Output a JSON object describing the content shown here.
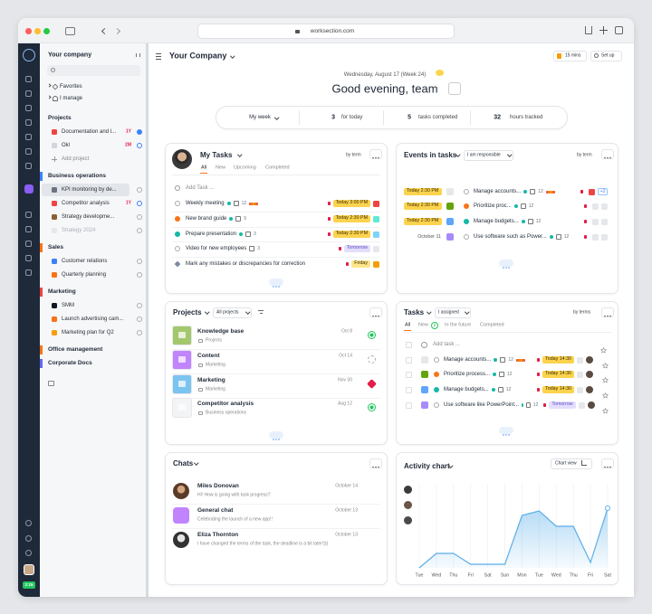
{
  "browser": {
    "url": "worksection.com"
  },
  "rail": {
    "timer": "2:15"
  },
  "sidebar": {
    "title": "Your company",
    "favorites": "Favorites",
    "i_manage": "I manage",
    "add_project": "Add project",
    "sections": [
      {
        "title": "Projects",
        "items": [
          {
            "label": "Documentation and l...",
            "tag": "1Y",
            "icon": "#ef4444"
          },
          {
            "label": "Okl",
            "tag": "2M",
            "icon": "#d1d5db"
          },
          {
            "label": "Add project"
          }
        ]
      },
      {
        "title": "Business operations",
        "accent": "#3b82f6",
        "items": [
          {
            "label": "KPI monitoring by de...",
            "icon": "#6b7280",
            "selected": true
          },
          {
            "label": "Competitor analysis",
            "tag": "1Y",
            "icon": "#ef4444"
          },
          {
            "label": "Strategy developme...",
            "icon": "#8b5e34"
          },
          {
            "label": "Strategy 2024",
            "icon": "#e5e7eb",
            "muted": true
          }
        ]
      },
      {
        "title": "Sales",
        "accent": "#f97316",
        "items": [
          {
            "label": "Customer relations",
            "icon": "#3b82f6"
          },
          {
            "label": "Quarterly planning",
            "icon": "#f97316"
          }
        ]
      },
      {
        "title": "Marketing",
        "accent": "#ef4444",
        "items": [
          {
            "label": "SMM",
            "icon": "#111827"
          },
          {
            "label": "Launch advertising cam...",
            "icon": "#f97316"
          },
          {
            "label": "Marketing plan for Q2",
            "icon": "#f59e0b"
          }
        ]
      },
      {
        "title": "Office management",
        "accent": "#f97316",
        "items": []
      },
      {
        "title": "Corporate Docs",
        "accent": "#6366f1",
        "items": []
      }
    ]
  },
  "header": {
    "workspace": "Your Company",
    "timer": "15 mins",
    "setup": "Set up",
    "date": "Wednesday, August 17 (Week 24)",
    "greeting": "Good evening, team"
  },
  "stats": {
    "period": "My week",
    "items": [
      {
        "value": 3,
        "label": "for today"
      },
      {
        "value": 5,
        "label": "tasks completed"
      },
      {
        "value": 32,
        "label": "hours tracked"
      }
    ]
  },
  "my_tasks": {
    "title": "My Tasks",
    "sort": "by term",
    "tabs": [
      "All",
      "New",
      "Upcoming",
      "Completed"
    ],
    "add": "Add Task ...",
    "rows": [
      {
        "name": "Weekly meeting",
        "count": 12,
        "due": "Today 3:00 PM",
        "due_type": "today"
      },
      {
        "name": "New brand guide",
        "count": 5,
        "due": "Today 2:30 PM",
        "due_type": "today"
      },
      {
        "name": "Prepare presentation",
        "count": 3,
        "due": "Today 2:30 PM",
        "due_type": "today"
      },
      {
        "name": "Video for new employees",
        "count": 3,
        "due": "Tomorrow",
        "due_type": "tomorrow"
      },
      {
        "name": "Mark any mistakes or discrepancies for correction",
        "due": "Friday",
        "due_type": "soon"
      }
    ]
  },
  "events": {
    "title": "Events in tasks",
    "filter": "I am responsible",
    "sort": "by term",
    "rows": [
      {
        "date": "Today 2:30 PM",
        "date_type": "today",
        "name": "Manage accounts...",
        "count": 12,
        "extra": "+2"
      },
      {
        "date": "Today 2:30 PM",
        "date_type": "today",
        "name": "Prioritize proc...",
        "count": 12
      },
      {
        "date": "Today 2:30 PM",
        "date_type": "today",
        "name": "Manage budgets...",
        "count": 12
      },
      {
        "date": "October 11",
        "date_type": "plain",
        "name": "Use software such as Power...",
        "count": 12
      }
    ]
  },
  "projects": {
    "title": "Projects",
    "filter": "All projects",
    "rows": [
      {
        "name": "Knowledge base",
        "folder": "Projects",
        "date": "Oct 8"
      },
      {
        "name": "Content",
        "folder": "Marketing",
        "date": "Oct 14"
      },
      {
        "name": "Marketing",
        "folder": "Marketing",
        "date": "Nov 30"
      },
      {
        "name": "Competitor analysis",
        "folder": "Business operations",
        "date": "Aug 12"
      }
    ]
  },
  "tasks": {
    "title": "Tasks",
    "filter": "I assigned",
    "sort": "by terms",
    "tabs": [
      "All",
      "New",
      "In the future",
      "Completed"
    ],
    "new_count": 2,
    "add": "Add task ...",
    "rows": [
      {
        "name": "Manage accounts...",
        "count": 12,
        "due": "Today 14:30",
        "due_type": "today"
      },
      {
        "name": "Prioritize process...",
        "count": 12,
        "due": "Today 14:30",
        "due_type": "today"
      },
      {
        "name": "Manage budgets...",
        "count": 12,
        "due": "Today 14:30",
        "due_type": "today"
      },
      {
        "name": "Use software like PowerPoint...",
        "count": 12,
        "due": "Tomorrow",
        "due_type": "tomorrow"
      }
    ]
  },
  "chats": {
    "title": "Chats",
    "rows": [
      {
        "name": "Miles Donovan",
        "date": "October 14",
        "message": "Hi! How is going with task progress?"
      },
      {
        "name": "General chat",
        "date": "October 13",
        "message": "Celebrating the launch of a new app!!"
      },
      {
        "name": "Eliza Thornton",
        "date": "October 13",
        "message": "I have changed the terms of the task, the deadline is a bit later!)))"
      }
    ]
  },
  "activity": {
    "title": "Activity chart",
    "view": "Chart view",
    "type": "line",
    "color": "#5aaeea",
    "categories": [
      "Tue",
      "Wed",
      "Thu",
      "Fri",
      "Sat",
      "Sun",
      "Mon",
      "Tue",
      "Wed",
      "Thu",
      "Fri",
      "Sat"
    ],
    "values": [
      0,
      16,
      16,
      4,
      4,
      4,
      58,
      63,
      46,
      46,
      6,
      66
    ]
  }
}
